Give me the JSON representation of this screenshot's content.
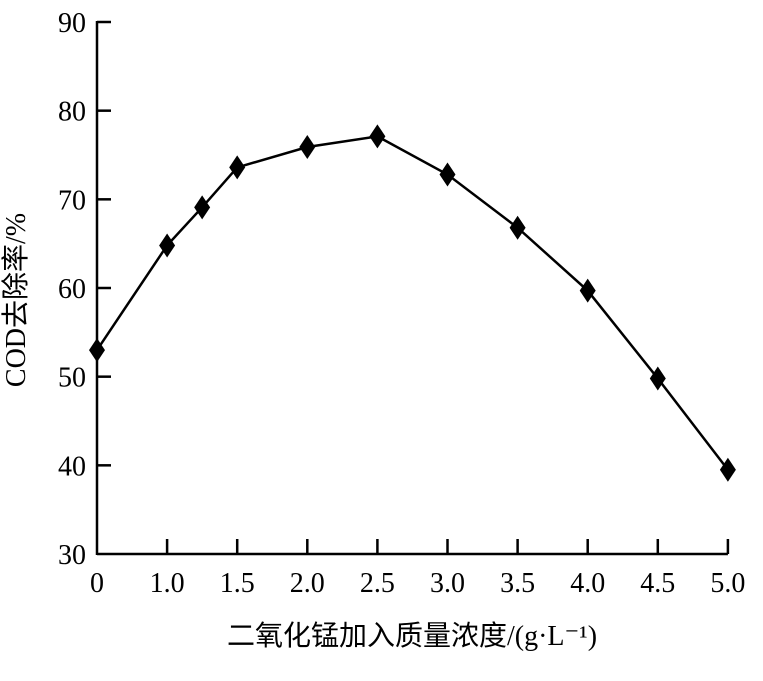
{
  "chart_data": {
    "type": "line",
    "title": "",
    "xlabel": "二氧化锰加入质量浓度/(g·L⁻¹)",
    "ylabel": "COD去除率/%",
    "ylim": [
      30,
      90
    ],
    "yticks": [
      30,
      40,
      50,
      60,
      70,
      80,
      90
    ],
    "xticks": [
      "0",
      "1.0",
      "1.5",
      "2.0",
      "2.5",
      "3.0",
      "3.5",
      "4.0",
      "4.5",
      "5.0"
    ],
    "grid": false,
    "marker": "diamond",
    "color": "#000000",
    "series": [
      {
        "x": [
          0,
          1.0,
          1.25,
          1.5,
          2.0,
          2.5,
          3.0,
          3.5,
          4.0,
          4.5,
          5.0
        ],
        "values": [
          53.0,
          64.8,
          69.1,
          73.6,
          75.9,
          77.1,
          72.8,
          66.8,
          59.7,
          49.8,
          39.5
        ]
      }
    ]
  }
}
